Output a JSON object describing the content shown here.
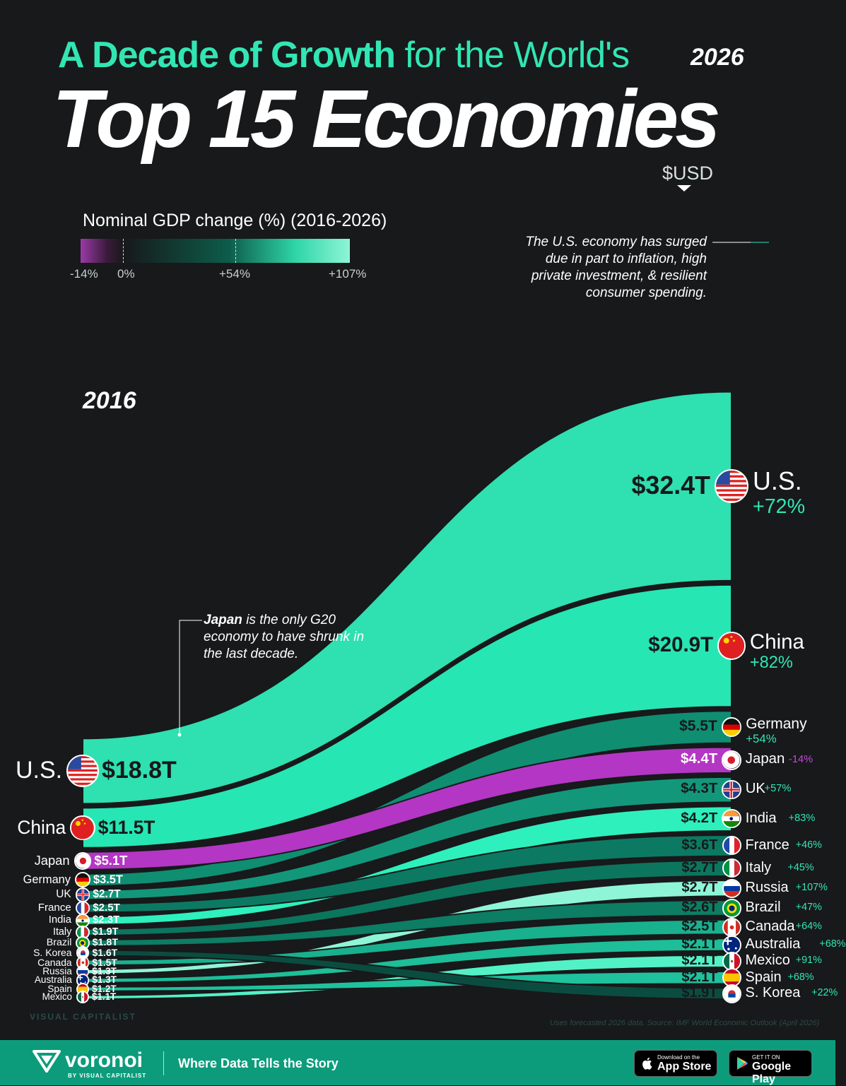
{
  "title": {
    "part1_bold": "A Decade of Growth",
    "part1_rest": " for the World's",
    "line2": "Top 15 Economies"
  },
  "years": {
    "start": "2016",
    "end": "2026"
  },
  "legend": {
    "title": "Nominal GDP change (%) (2016-2026)",
    "ticks": [
      "-14%",
      "0%",
      "+54%",
      "+107%"
    ],
    "colors": {
      "negative": "#9a3aa8",
      "zero": "#17191b",
      "mid": "#0d5c4a",
      "high": "#8ff5d7"
    }
  },
  "usd_label": "$USD",
  "notes": {
    "us": "The U.S. economy has surged due in part to inflation, high private investment, & resilient consumer spending.",
    "japan_bold": "Japan",
    "japan_rest": " is the only G20 economy to have shrunk in the last decade."
  },
  "source": "Uses forecasted 2026 data. Source: IMF World Economic Outlook (April 2026)",
  "brand": {
    "logo": "VISUAL CAPITALIST",
    "name": "voronoi",
    "sub": "BY VISUAL CAPITALIST",
    "tagline": "Where Data Tells the Story"
  },
  "stores": {
    "apple_small": "Download on the",
    "apple_large": "App Store",
    "google_small": "GET IT ON",
    "google_large": "Google Play"
  },
  "chart_data": {
    "type": "sankey-bump",
    "title": "Top 15 Economies",
    "unit": "$USD",
    "x": [
      "2016",
      "2026"
    ],
    "series": [
      {
        "name": "U.S.",
        "gdp_2016": "$18.8T",
        "gdp_2026": "$32.4T",
        "change": "+72%",
        "v2016": 18.8,
        "v2026": 32.4,
        "pct": 72,
        "color": "#2fe0b0",
        "flag": "us"
      },
      {
        "name": "China",
        "gdp_2016": "$11.5T",
        "gdp_2026": "$20.9T",
        "change": "+82%",
        "v2016": 11.5,
        "v2026": 20.9,
        "pct": 82,
        "color": "#26e6b4",
        "flag": "cn"
      },
      {
        "name": "Japan",
        "gdp_2016": "$5.1T",
        "gdp_2026": "$4.4T",
        "change": "-14%",
        "v2016": 5.1,
        "v2026": 4.4,
        "pct": -14,
        "color": "#b436c4",
        "flag": "jp"
      },
      {
        "name": "Germany",
        "gdp_2016": "$3.5T",
        "gdp_2026": "$5.5T",
        "change": "+54%",
        "v2016": 3.5,
        "v2026": 5.5,
        "pct": 54,
        "color": "#0f8e72",
        "flag": "de"
      },
      {
        "name": "UK",
        "gdp_2016": "$2.7T",
        "gdp_2026": "$4.3T",
        "change": "+57%",
        "v2016": 2.7,
        "v2026": 4.3,
        "pct": 57,
        "color": "#13977a",
        "flag": "uk"
      },
      {
        "name": "France",
        "gdp_2016": "$2.5T",
        "gdp_2026": "$3.6T",
        "change": "+46%",
        "v2016": 2.5,
        "v2026": 3.6,
        "pct": 46,
        "color": "#0c7a62",
        "flag": "fr"
      },
      {
        "name": "India",
        "gdp_2016": "$2.3T",
        "gdp_2026": "$4.2T",
        "change": "+83%",
        "v2016": 2.3,
        "v2026": 4.2,
        "pct": 83,
        "color": "#2ef0bc",
        "flag": "in"
      },
      {
        "name": "Italy",
        "gdp_2016": "$1.9T",
        "gdp_2026": "$2.7T",
        "change": "+45%",
        "v2016": 1.9,
        "v2026": 2.7,
        "pct": 45,
        "color": "#0c755e",
        "flag": "it"
      },
      {
        "name": "Brazil",
        "gdp_2016": "$1.8T",
        "gdp_2026": "$2.6T",
        "change": "+47%",
        "v2016": 1.8,
        "v2026": 2.6,
        "pct": 47,
        "color": "#0d7d64",
        "flag": "br"
      },
      {
        "name": "S. Korea",
        "gdp_2016": "$1.6T",
        "gdp_2026": "$1.9T",
        "change": "+22%",
        "v2016": 1.6,
        "v2026": 1.9,
        "pct": 22,
        "color": "#0a4d40",
        "flag": "kr"
      },
      {
        "name": "Canada",
        "gdp_2016": "$1.5T",
        "gdp_2026": "$2.5T",
        "change": "+64%",
        "v2016": 1.5,
        "v2026": 2.5,
        "pct": 64,
        "color": "#19b08e",
        "flag": "ca"
      },
      {
        "name": "Russia",
        "gdp_2016": "$1.3T",
        "gdp_2026": "$2.7T",
        "change": "+107%",
        "v2016": 1.3,
        "v2026": 2.7,
        "pct": 107,
        "color": "#8ff5d7",
        "flag": "ru"
      },
      {
        "name": "Australia",
        "gdp_2016": "$1.3T",
        "gdp_2026": "$2.1T",
        "change": "+68%",
        "v2016": 1.3,
        "v2026": 2.1,
        "pct": 68,
        "color": "#1dbe98",
        "flag": "au"
      },
      {
        "name": "Spain",
        "gdp_2016": "$1.2T",
        "gdp_2026": "$2.1T",
        "change": "+68%",
        "v2016": 1.2,
        "v2026": 2.1,
        "pct": 68,
        "color": "#1fc29c",
        "flag": "es"
      },
      {
        "name": "Mexico",
        "gdp_2016": "$1.1T",
        "gdp_2026": "$2.1T",
        "change": "+91%",
        "v2016": 1.1,
        "v2026": 2.1,
        "pct": 91,
        "color": "#52f2c6",
        "flag": "mx"
      }
    ],
    "rank_2026": [
      "U.S.",
      "China",
      "Germany",
      "Japan",
      "UK",
      "India",
      "France",
      "Italy",
      "Russia",
      "Brazil",
      "Canada",
      "Australia",
      "Mexico",
      "Spain",
      "S. Korea"
    ]
  }
}
